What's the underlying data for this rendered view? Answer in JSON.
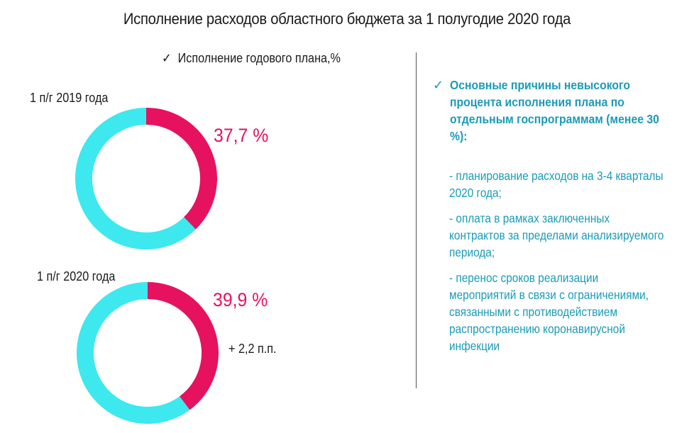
{
  "title": "Исполнение расходов областного бюджета за 1 полугодие 2020 года",
  "subtitle": "Исполнение годового плана,%",
  "colors": {
    "executed": "#e6125f",
    "remaining": "#3de8ef",
    "accent_text": "#1a9bb8"
  },
  "chart_data": [
    {
      "type": "pie",
      "donut": true,
      "label": "1 п/г 2019 года",
      "values": [
        37.7,
        62.3
      ],
      "value_label": "37,7 %"
    },
    {
      "type": "pie",
      "donut": true,
      "label": "1 п/г 2020 года",
      "values": [
        39.9,
        60.1
      ],
      "value_label": "39,9 %"
    }
  ],
  "change_note": "+ 2,2 п.п.",
  "reasons": {
    "heading": "Основные причины невысокого процента исполнения плана по отдельным госпрограммам (менее 30 %):",
    "items": [
      "- планирование расходов на 3-4 кварталы 2020 года;",
      "- оплата в рамках заключенных контрактов за пределами анализируемого периода;",
      "- перенос сроков реализации мероприятий в связи с ограничениями, связанными с противодействием распространению коронавирусной инфекции"
    ]
  }
}
